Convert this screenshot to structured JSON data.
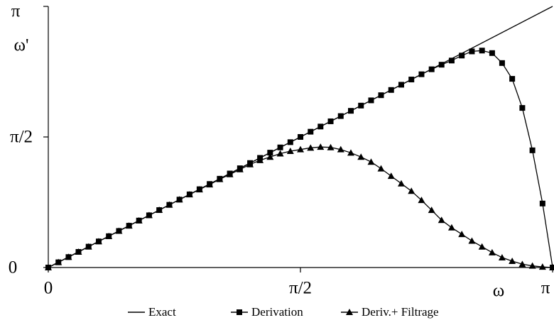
{
  "chart_data": {
    "type": "line",
    "y_label": "ω'",
    "x_label": "ω",
    "xlim": [
      0,
      3.1416
    ],
    "ylim": [
      0,
      3.1416
    ],
    "xticks": [
      0,
      {
        "value": 1.5708,
        "label": "π/2"
      },
      {
        "value": 3.1416,
        "label": "π"
      }
    ],
    "yticks": [
      0,
      {
        "value": 1.5708,
        "label": "π/2"
      },
      {
        "value": 3.1416,
        "label": "π"
      }
    ],
    "legend": "bottom",
    "series": [
      {
        "name": "Exact",
        "color": "#000000",
        "marker": "none",
        "x": [
          0,
          3.1416
        ],
        "values": [
          0,
          3.1416
        ]
      },
      {
        "name": "Derivation",
        "color": "#000000",
        "marker": "square",
        "x": [
          0,
          0.063,
          0.126,
          0.188,
          0.251,
          0.314,
          0.377,
          0.44,
          0.503,
          0.565,
          0.628,
          0.691,
          0.754,
          0.817,
          0.88,
          0.942,
          1.005,
          1.068,
          1.131,
          1.194,
          1.257,
          1.319,
          1.382,
          1.445,
          1.508,
          1.571,
          1.634,
          1.696,
          1.759,
          1.822,
          1.885,
          1.948,
          2.011,
          2.073,
          2.136,
          2.199,
          2.262,
          2.325,
          2.388,
          2.45,
          2.513,
          2.576,
          2.639,
          2.702,
          2.765,
          2.827,
          2.89,
          2.953,
          3.016,
          3.079,
          3.142
        ],
        "values": [
          0,
          0.063,
          0.126,
          0.188,
          0.251,
          0.314,
          0.377,
          0.44,
          0.503,
          0.565,
          0.628,
          0.691,
          0.754,
          0.817,
          0.88,
          0.942,
          1.005,
          1.068,
          1.131,
          1.194,
          1.257,
          1.319,
          1.382,
          1.445,
          1.508,
          1.571,
          1.634,
          1.696,
          1.759,
          1.822,
          1.885,
          1.948,
          2.011,
          2.073,
          2.136,
          2.199,
          2.262,
          2.325,
          2.385,
          2.44,
          2.49,
          2.55,
          2.6,
          2.61,
          2.58,
          2.46,
          2.27,
          1.92,
          1.41,
          0.77,
          0
        ]
      },
      {
        "name": "Deriv.+ Filtrage",
        "color": "#000000",
        "marker": "triangle",
        "x": [
          0,
          0.063,
          0.126,
          0.188,
          0.251,
          0.314,
          0.377,
          0.44,
          0.503,
          0.565,
          0.628,
          0.691,
          0.754,
          0.817,
          0.88,
          0.942,
          1.005,
          1.068,
          1.131,
          1.194,
          1.257,
          1.319,
          1.382,
          1.445,
          1.508,
          1.571,
          1.634,
          1.696,
          1.759,
          1.822,
          1.885,
          1.948,
          2.011,
          2.073,
          2.136,
          2.199,
          2.262,
          2.325,
          2.388,
          2.45,
          2.513,
          2.576,
          2.639,
          2.702,
          2.765,
          2.827,
          2.89,
          2.953,
          3.016,
          3.079,
          3.142
        ],
        "values": [
          0,
          0.063,
          0.126,
          0.188,
          0.251,
          0.314,
          0.377,
          0.44,
          0.503,
          0.565,
          0.628,
          0.691,
          0.754,
          0.817,
          0.878,
          0.938,
          0.998,
          1.062,
          1.12,
          1.18,
          1.24,
          1.29,
          1.33,
          1.37,
          1.4,
          1.42,
          1.44,
          1.45,
          1.445,
          1.42,
          1.38,
          1.33,
          1.27,
          1.19,
          1.1,
          1.01,
          0.92,
          0.81,
          0.69,
          0.57,
          0.48,
          0.4,
          0.32,
          0.25,
          0.18,
          0.12,
          0.077,
          0.04,
          0.02,
          0.008,
          0
        ]
      }
    ]
  }
}
